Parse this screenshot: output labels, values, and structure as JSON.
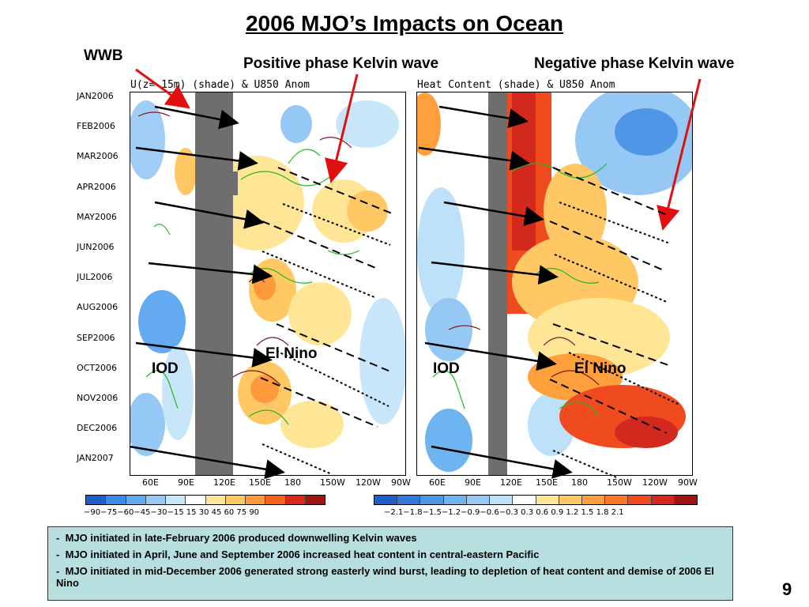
{
  "title": "2006 MJO’s Impacts on Ocean",
  "labels": {
    "wwb": "WWB",
    "positive_kelvin": "Positive phase Kelvin wave",
    "negative_kelvin": "Negative phase Kelvin wave",
    "iod_left": "IOD",
    "iod_right": "IOD",
    "elnino_left": "El Nino",
    "elnino_right": "El Nino"
  },
  "panels": {
    "left_title": "U(z= 15m) (shade) & U850 Anom",
    "right_title": "Heat Content (shade) & U850 Anom"
  },
  "y_ticks": [
    "JAN2006",
    "FEB2006",
    "MAR2006",
    "APR2006",
    "MAY2006",
    "JUN2006",
    "JUL2006",
    "AUG2006",
    "SEP2006",
    "OCT2006",
    "NOV2006",
    "DEC2006",
    "JAN2007"
  ],
  "x_ticks": [
    "60E",
    "90E",
    "120E",
    "150E",
    "180",
    "150W",
    "120W",
    "90W"
  ],
  "colorbars": {
    "left": {
      "colors": [
        "#1e5fc8",
        "#3c8ce6",
        "#64aaf0",
        "#96c8f5",
        "#c8e6fa",
        "#ffffff",
        "#ffe696",
        "#ffc864",
        "#ff9a3c",
        "#f5641e",
        "#dc2814",
        "#a01414"
      ],
      "ticks": "−90−75−60−45−30−15 15  30  45  60  75  90"
    },
    "right": {
      "colors": [
        "#1e5fc8",
        "#3278dc",
        "#5096e6",
        "#6eb4f0",
        "#96c8f5",
        "#bee1fa",
        "#ffffff",
        "#ffe696",
        "#ffc864",
        "#ffa03c",
        "#ff7828",
        "#f04b1e",
        "#d2281e",
        "#a01414"
      ],
      "ticks": "−2.1−1.8−1.5−1.2−0.9−0.6−0.3 0.3  0.6  0.9  1.2  1.5  1.8  2.1"
    }
  },
  "notes": [
    "MJO initiated in late-February 2006 produced downwelling Kelvin waves",
    "MJO initiated in April, June and September 2006 increased heat content in central-eastern Pacific",
    "MJO initiated in mid-December 2006 generated strong easterly wind burst, leading to depletion of heat content and demise of 2006 El Nino"
  ],
  "page_number": "9",
  "colors": {
    "arrow_red": "#e01010",
    "land_gray": "#6e6e6e",
    "notes_bg": "#b8dfe0"
  }
}
